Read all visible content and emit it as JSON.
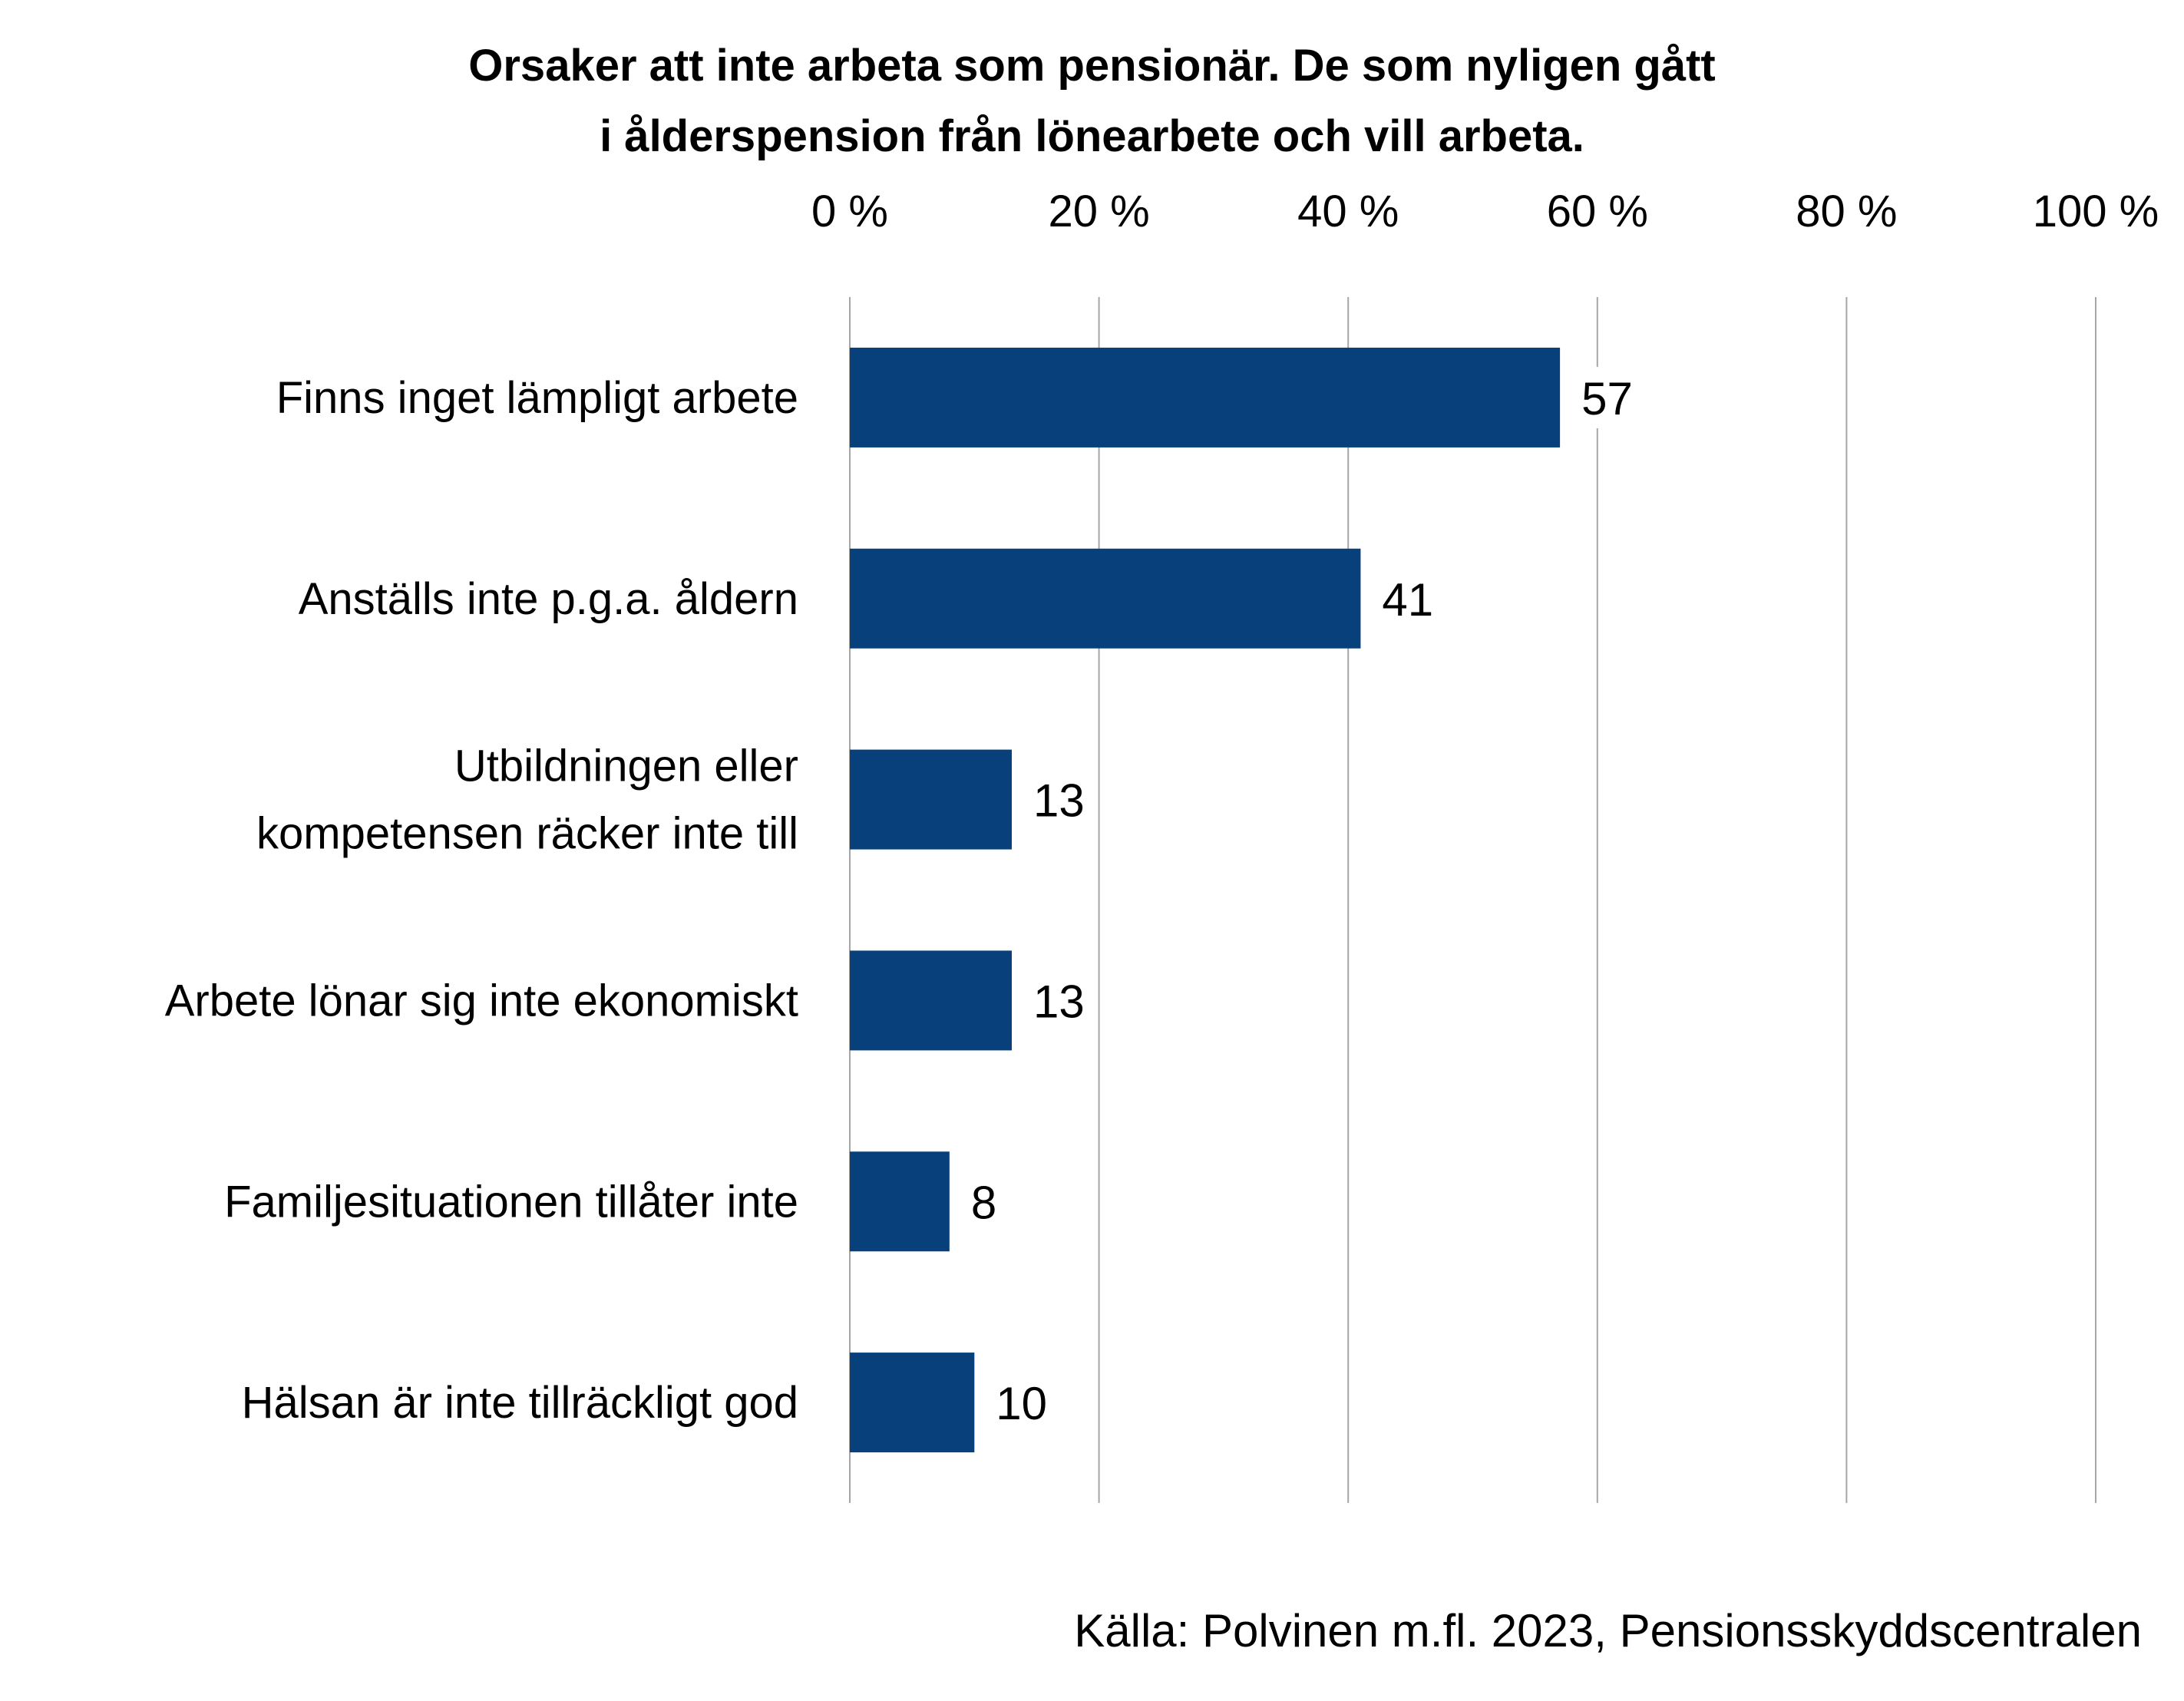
{
  "chart_data": {
    "type": "bar",
    "orientation": "horizontal",
    "title_lines": [
      "Orsaker att inte arbeta som pensionär. De som nyligen gått",
      "i ålderspension från lönearbete och vill arbeta."
    ],
    "categories": [
      [
        "Finns inget lämpligt arbete"
      ],
      [
        "Anställs inte p.g.a. åldern"
      ],
      [
        "Utbildningen eller",
        "kompetensen räcker inte till"
      ],
      [
        "Arbete lönar sig inte ekonomiskt"
      ],
      [
        "Familjesituationen tillåter inte"
      ],
      [
        "Hälsan är inte tillräckligt god"
      ]
    ],
    "values": [
      57,
      41,
      13,
      13,
      8,
      10
    ],
    "data_labels": [
      "57",
      "41",
      "13",
      "13",
      "8",
      "10"
    ],
    "x_ticks": [
      0,
      20,
      40,
      60,
      80,
      100
    ],
    "x_tick_labels": [
      "0 %",
      "20 %",
      "40 %",
      "60 %",
      "80 %",
      "100 %"
    ],
    "xlim": [
      0,
      100
    ],
    "axis_position": "top",
    "grid": true,
    "legend": "none",
    "bar_color": "#07407A",
    "grid_color": "#A6A6A6",
    "source": "Källa: Polvinen m.fl. 2023, Pensionsskyddscentralen"
  }
}
